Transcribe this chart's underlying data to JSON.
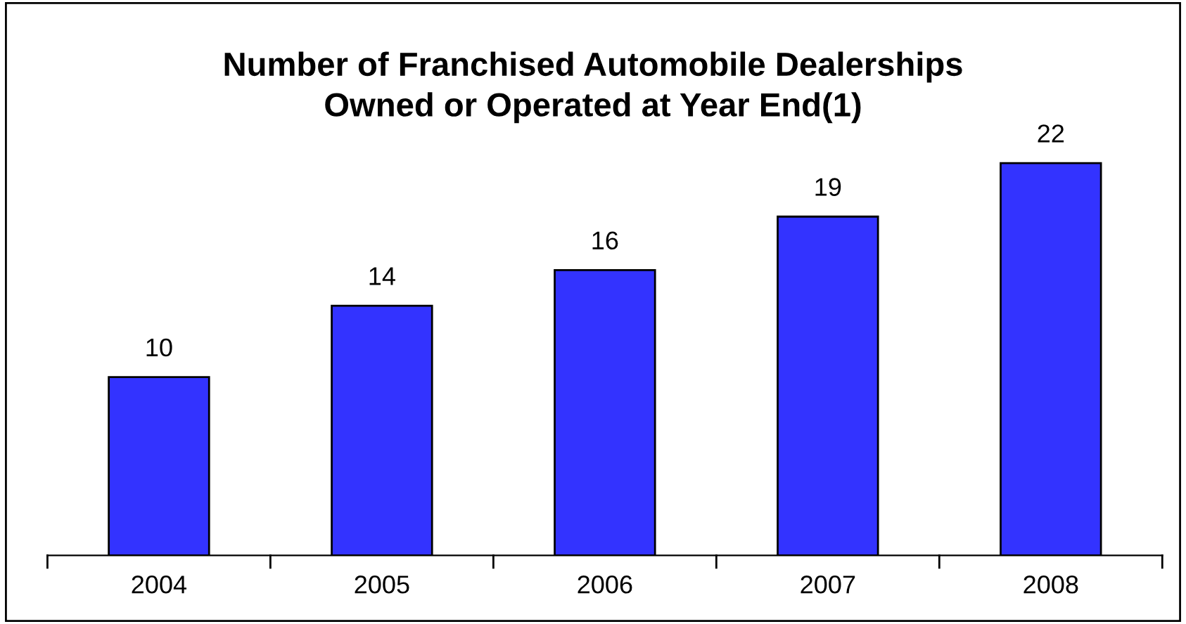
{
  "chart_data": {
    "type": "bar",
    "title": "Number of Franchised Automobile Dealerships\nOwned or Operated at Year End(1)",
    "categories": [
      "2004",
      "2005",
      "2006",
      "2007",
      "2008"
    ],
    "values": [
      10,
      14,
      16,
      19,
      22
    ],
    "color": "#3333ff",
    "data_labels": true,
    "grid": false,
    "legend": false
  }
}
